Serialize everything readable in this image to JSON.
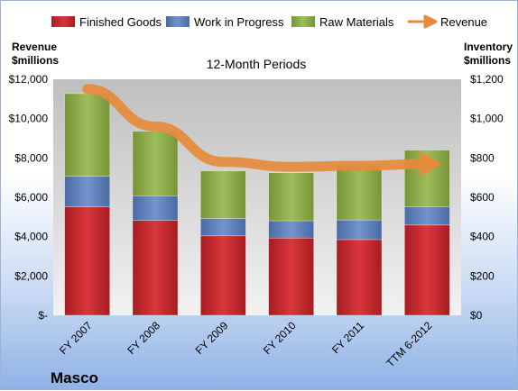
{
  "chart_data": {
    "type": "bar",
    "stacked": true,
    "subtitle": "12-Month Periods",
    "company": "Masco",
    "categories": [
      "FY 2007",
      "FY 2008",
      "FY 2009",
      "FY 2010",
      "FY 2011",
      "TTM 6-2012"
    ],
    "series": [
      {
        "name": "Finished Goods",
        "axis": "right",
        "color": "#c0262b",
        "values": [
          551,
          483,
          404,
          393,
          385,
          459
        ]
      },
      {
        "name": "Work in Progress",
        "axis": "right",
        "color": "#5b7cb5",
        "values": [
          156,
          125,
          88,
          88,
          100,
          93
        ]
      },
      {
        "name": "Raw Materials",
        "axis": "right",
        "color": "#8aa84a",
        "values": [
          420,
          328,
          242,
          244,
          278,
          288
        ]
      },
      {
        "name": "Revenue",
        "axis": "left",
        "type": "line",
        "color": "#e68a3b",
        "values": [
          11500,
          9600,
          7800,
          7550,
          7600,
          7700
        ]
      }
    ],
    "left_axis": {
      "title_line1": "Revenue",
      "title_line2": "$millions",
      "ylim": [
        0,
        12000
      ],
      "ticks": [
        0,
        2000,
        4000,
        6000,
        8000,
        10000,
        12000
      ],
      "tick_labels": [
        "$-",
        "$2,000",
        "$4,000",
        "$6,000",
        "$8,000",
        "$10,000",
        "$12,000"
      ]
    },
    "right_axis": {
      "title_line1": "Inventory",
      "title_line2": "$millions",
      "ylim": [
        0,
        1200
      ],
      "ticks": [
        0,
        200,
        400,
        600,
        800,
        1000,
        1200
      ],
      "tick_labels": [
        "$0",
        "$200",
        "$400",
        "$600",
        "$800",
        "$1,000",
        "$1,200"
      ]
    },
    "legend_position": "top",
    "grid": false
  }
}
